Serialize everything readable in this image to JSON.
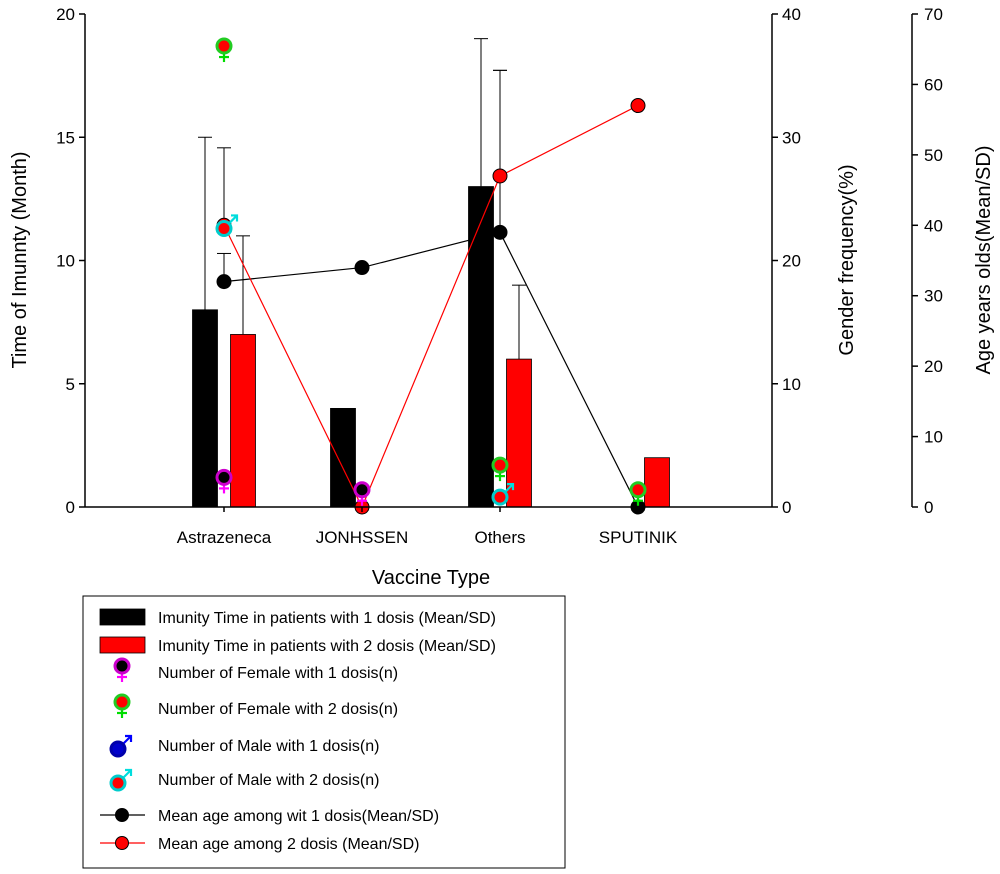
{
  "chart_data": {
    "type": "bar",
    "categories": [
      "Astrazeneca",
      "JONHSSEN",
      "Others",
      "SPUTINIK"
    ],
    "xlabel": "Vaccine Type",
    "left_axis": {
      "label": "Time of Imunnty (Month)",
      "ylim": [
        0,
        20
      ],
      "ticks": [
        "0",
        "5",
        "10",
        "15",
        "20"
      ]
    },
    "right_axis_1": {
      "label": "Gender frequency(%)",
      "ylim": [
        0,
        40
      ],
      "ticks": [
        "0",
        "10",
        "20",
        "30",
        "40"
      ]
    },
    "right_axis_2": {
      "label": "Age years olds(Mean/SD)",
      "ylim": [
        0,
        70
      ],
      "ticks": [
        "0",
        "10",
        "20",
        "30",
        "40",
        "50",
        "60",
        "70"
      ]
    },
    "bar_series": [
      {
        "name": "Imunity Time in patients with 1 dosis (Mean/SD)",
        "color": "#000000",
        "values": [
          8,
          4,
          13,
          null
        ],
        "sd": [
          7,
          null,
          6,
          null
        ]
      },
      {
        "name": "Imunity Time in patients with 2 dosis (Mean/SD)",
        "color": "#ff0000",
        "values": [
          7,
          null,
          6,
          2
        ],
        "sd": [
          4,
          null,
          3,
          null
        ]
      }
    ],
    "marker_series": [
      {
        "name": "Number of Female with 1 dosis(n)",
        "axis": "gender",
        "icon": "female-icon",
        "outline": "#cc00cc",
        "center": "#000000",
        "symbol_color": "#ff00ff",
        "values": [
          2.4,
          1.4,
          null,
          null
        ]
      },
      {
        "name": "Number of Female with 2 dosis(n)",
        "axis": "gender",
        "icon": "female-icon",
        "outline": "#22cc22",
        "center": "#ff0000",
        "symbol_color": "#00dd00",
        "values": [
          37.4,
          null,
          3.4,
          1.4
        ]
      },
      {
        "name": "Number of Male with 1 dosis(n)",
        "axis": "gender",
        "icon": "male-icon",
        "outline": "#0000aa",
        "center": "#0000cc",
        "symbol_color": "#0000ff",
        "values": [
          null,
          null,
          null,
          null
        ]
      },
      {
        "name": "Number of Male with 2 dosis(n)",
        "axis": "gender",
        "icon": "male-icon",
        "outline": "#00cccc",
        "center": "#ff0000",
        "symbol_color": "#00dddd",
        "values": [
          22.6,
          null,
          0.8,
          null
        ]
      }
    ],
    "line_series": [
      {
        "name": "Mean age among wit 1 dosis(Mean/SD)",
        "axis": "age",
        "color": "#000000",
        "marker_fill": "#000000",
        "values": [
          32,
          34,
          39,
          0
        ],
        "sd": [
          4,
          null,
          23,
          null
        ]
      },
      {
        "name": "Mean age among 2 dosis (Mean/SD)",
        "axis": "age",
        "color": "#ff0000",
        "marker_fill": "#ff0000",
        "values": [
          40,
          0,
          47,
          57
        ],
        "sd": [
          11,
          null,
          15,
          null
        ]
      }
    ],
    "legend_position": "bottom",
    "grid": false
  }
}
